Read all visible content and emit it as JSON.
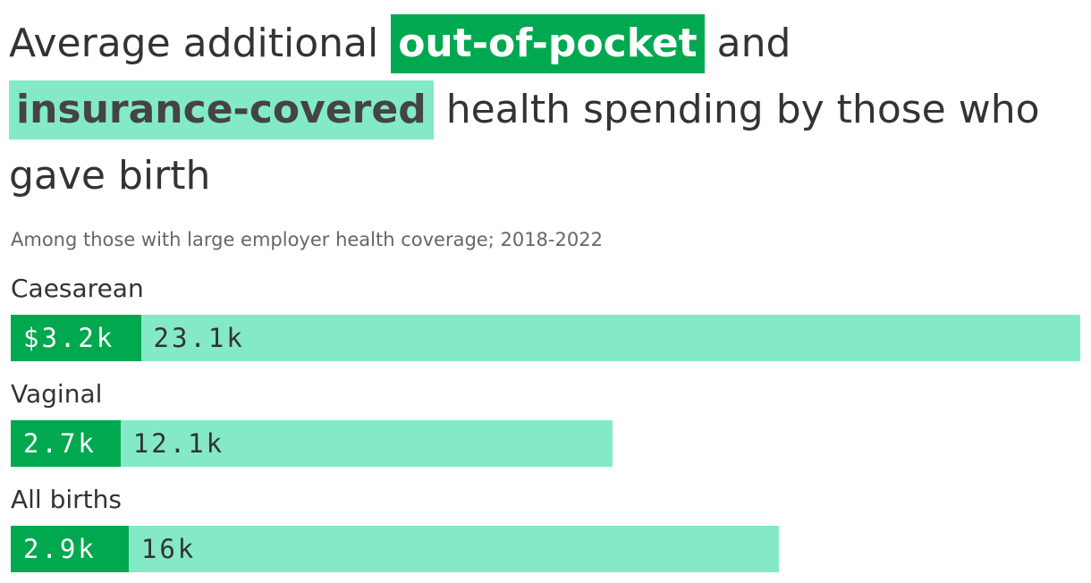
{
  "title": {
    "part1": "Average additional ",
    "highlight1": "out-of-pocket",
    "part2": " and ",
    "highlight2": "insurance-covered",
    "part3": " health spending by those who gave birth"
  },
  "subtitle": "Among those with large employer health coverage; 2018-2022",
  "colors": {
    "out_of_pocket": "#00A84F",
    "insurance_covered": "#84EAC6"
  },
  "chart_data": {
    "type": "bar",
    "orientation": "horizontal",
    "stacked": true,
    "categories": [
      "Caesarean",
      "Vaginal",
      "All births"
    ],
    "series": [
      {
        "name": "out-of-pocket",
        "values": [
          3.2,
          2.7,
          2.9
        ],
        "labels": [
          "$3.2k",
          "2.7k",
          "2.9k"
        ]
      },
      {
        "name": "insurance-covered",
        "values": [
          23.1,
          12.1,
          16.0
        ],
        "labels": [
          "23.1k",
          "12.1k",
          "16k"
        ]
      }
    ],
    "unit": "thousands of dollars",
    "xlim": [
      0,
      26.3
    ],
    "grid": false,
    "legend": "title"
  }
}
